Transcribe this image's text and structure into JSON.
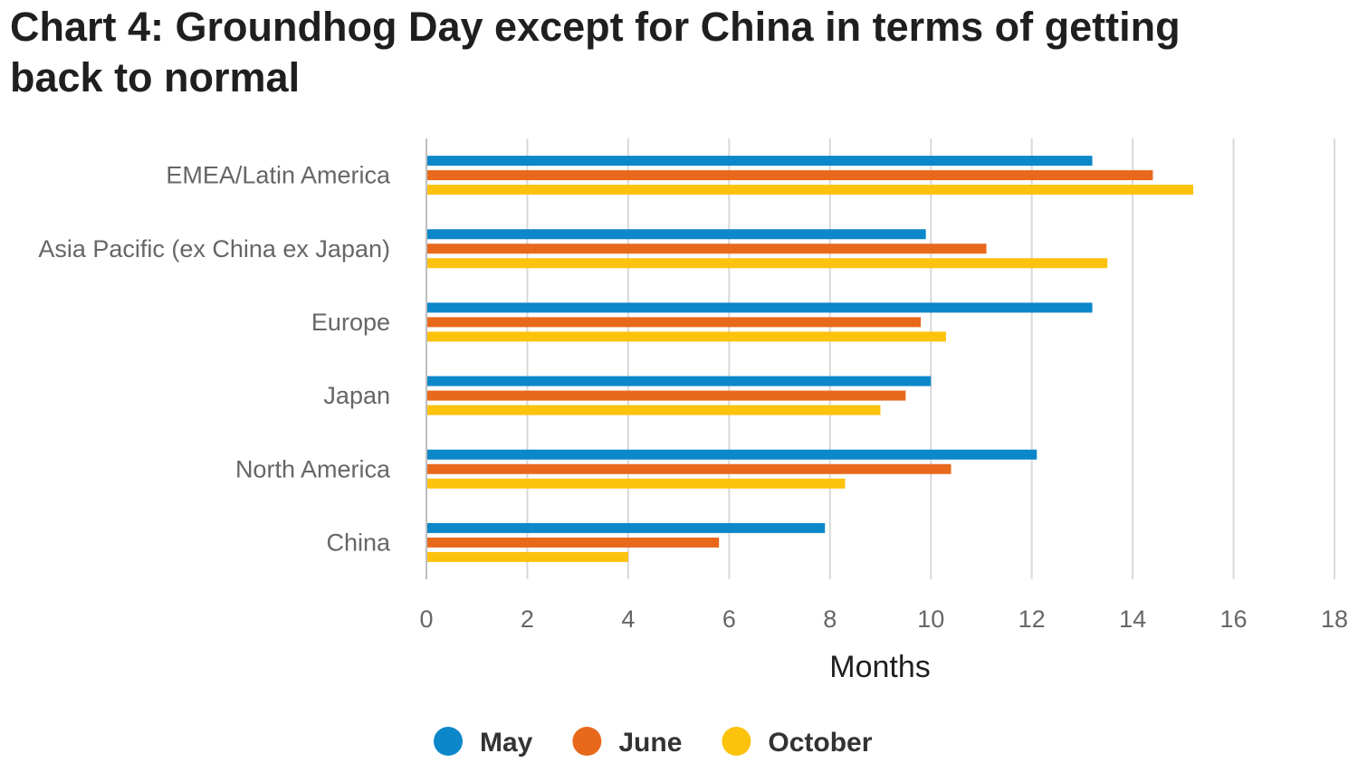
{
  "chart_data": {
    "type": "bar",
    "orientation": "horizontal",
    "title": "Chart 4: Groundhog Day except for China in terms of getting back to normal",
    "xlabel": "Months",
    "ylabel": "",
    "xlim": [
      0,
      18
    ],
    "xticks": [
      0,
      2,
      4,
      6,
      8,
      10,
      12,
      14,
      16,
      18
    ],
    "grid": "vertical",
    "legend_position": "bottom",
    "categories": [
      "EMEA/Latin America",
      "Asia Pacific (ex China ex Japan)",
      "Europe",
      "Japan",
      "North America",
      "China"
    ],
    "series": [
      {
        "name": "May",
        "color": "#0c87c9",
        "values": [
          13.2,
          9.9,
          13.2,
          10.0,
          12.1,
          7.9
        ]
      },
      {
        "name": "June",
        "color": "#e8681c",
        "values": [
          14.4,
          11.1,
          9.8,
          9.5,
          10.4,
          5.8
        ]
      },
      {
        "name": "October",
        "color": "#fdc20c",
        "values": [
          15.2,
          13.5,
          10.3,
          9.0,
          8.3,
          4.0
        ]
      }
    ]
  }
}
